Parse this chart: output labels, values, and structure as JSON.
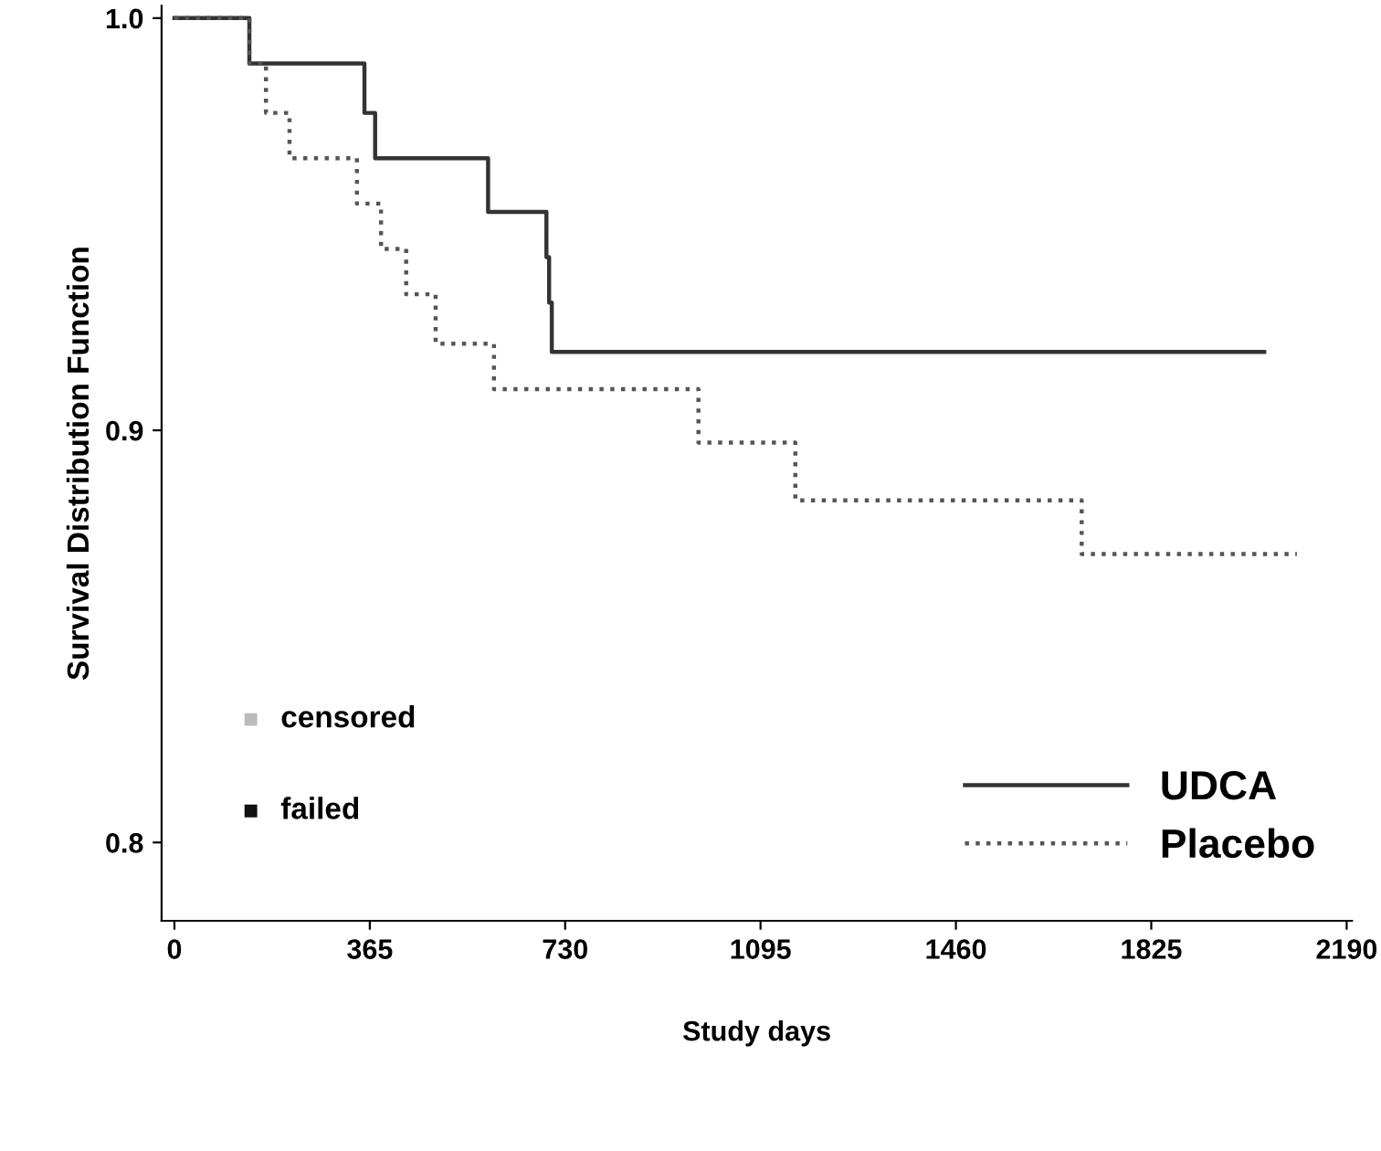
{
  "chart_data": {
    "type": "step",
    "xlabel": "Study days",
    "ylabel": "Survival Distribution Function",
    "xlim": [
      -24,
      2200
    ],
    "ylim": [
      0.781,
      1.003
    ],
    "xticks": [
      0,
      365,
      730,
      1095,
      1460,
      1825,
      2190
    ],
    "yticks": [
      {
        "value": 0.8,
        "label": "0.8"
      },
      {
        "value": 0.9,
        "label": "0.9"
      },
      {
        "value": 1.0,
        "label": "1.0"
      }
    ],
    "series": [
      {
        "name": "UDCA",
        "color": "#333333",
        "line_style": "solid",
        "x": [
          0,
          140,
          355,
          375,
          586,
          695,
          700,
          705,
          2036
        ],
        "values": [
          1.0,
          0.989,
          0.977,
          0.966,
          0.953,
          0.942,
          0.931,
          0.919,
          0.919
        ]
      },
      {
        "name": "Placebo",
        "color": "#555555",
        "line_style": "dotted",
        "x": [
          0,
          140,
          171,
          215,
          341,
          386,
          433,
          488,
          597,
          979,
          1160,
          1695,
          2097
        ],
        "values": [
          1.0,
          0.989,
          0.977,
          0.966,
          0.955,
          0.944,
          0.933,
          0.921,
          0.91,
          0.897,
          0.883,
          0.87,
          0.87
        ]
      }
    ],
    "annotations": [
      "censored",
      "failed"
    ],
    "legend": "bottom right",
    "grid": false
  }
}
